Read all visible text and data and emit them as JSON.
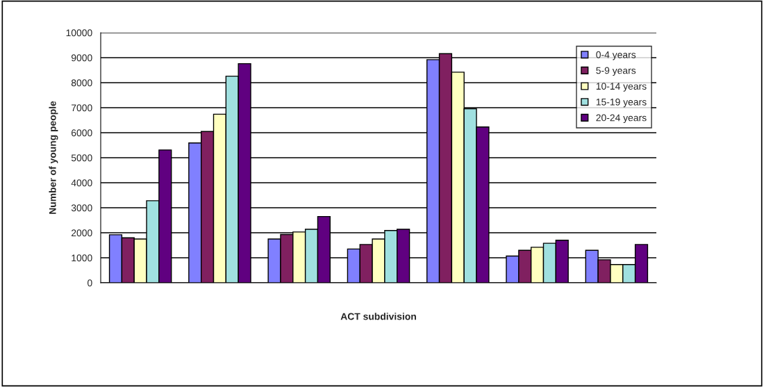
{
  "chart_data": {
    "type": "bar",
    "xlabel": "ACT subdivision",
    "ylabel": "Number of young people",
    "categories": [
      null,
      null,
      null,
      null,
      null,
      null,
      null
    ],
    "series": [
      {
        "name": "0-4 years",
        "color": "#8080ff",
        "values": [
          1920,
          5590,
          1750,
          1350,
          8920,
          1070,
          1300
        ]
      },
      {
        "name": "5-9 years",
        "color": "#802060",
        "values": [
          1800,
          6050,
          1930,
          1530,
          9160,
          1300,
          920
        ]
      },
      {
        "name": "10-14 years",
        "color": "#ffffc0",
        "values": [
          1750,
          6740,
          2030,
          1750,
          8420,
          1420,
          730
        ]
      },
      {
        "name": "15-19 years",
        "color": "#a0e0e0",
        "values": [
          3280,
          8260,
          2140,
          2090,
          6960,
          1580,
          730
        ]
      },
      {
        "name": "20-24 years",
        "color": "#600080",
        "values": [
          5310,
          8760,
          2650,
          2140,
          6230,
          1700,
          1530
        ]
      }
    ],
    "ylim": [
      0,
      10000
    ],
    "yticks": [
      0,
      1000,
      2000,
      3000,
      4000,
      5000,
      6000,
      7000,
      8000,
      9000,
      10000
    ],
    "grid": "y",
    "legend": "top right"
  }
}
